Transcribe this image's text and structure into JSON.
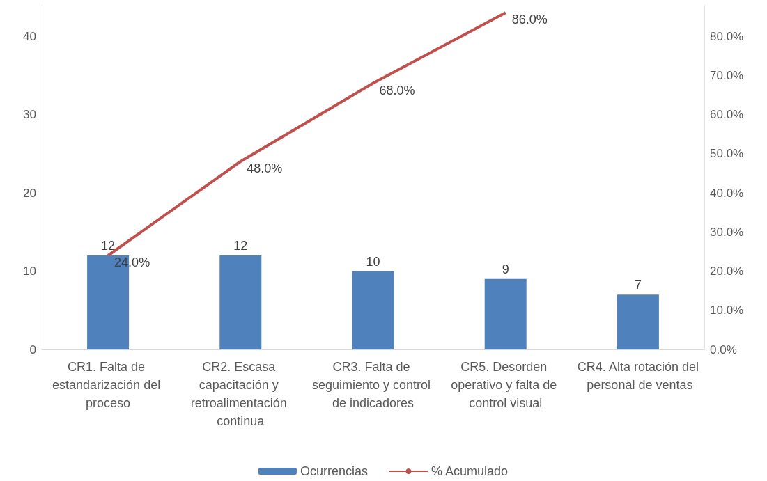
{
  "chart_data": {
    "type": "bar",
    "categories": [
      "CR1. Falta de estandarización del proceso",
      "CR2. Escasa capacitación y retroalimentación continua",
      "CR3. Falta de seguimiento y control de indicadores",
      "CR5. Desorden operativo y falta de control visual",
      "CR4. Alta rotación del personal de ventas"
    ],
    "series": [
      {
        "name": "Ocurrencias",
        "color": "#4f81bd",
        "values": [
          12,
          12,
          10,
          9,
          7
        ],
        "value_labels": [
          "12",
          "12",
          "10",
          "9",
          "7"
        ]
      },
      {
        "name": "% Acumulado",
        "type": "line",
        "axis": "y2",
        "color": "#c0504d",
        "values": [
          24,
          48,
          68,
          86,
          null
        ],
        "value_labels": [
          "24.0%",
          "48.0%",
          "68.0%",
          "86.0%",
          null
        ]
      }
    ],
    "ylim": [
      0,
      44
    ],
    "yticks": [
      0,
      10,
      20,
      30,
      40
    ],
    "y2lim": [
      0,
      88
    ],
    "y2ticks": [
      {
        "value": 0,
        "label": "0.0%"
      },
      {
        "value": 10,
        "label": "10.0%"
      },
      {
        "value": 20,
        "label": "20.0%"
      },
      {
        "value": 30,
        "label": "30.0%"
      },
      {
        "value": 40,
        "label": "40.0%"
      },
      {
        "value": 50,
        "label": "50.0%"
      },
      {
        "value": 60,
        "label": "60.0%"
      },
      {
        "value": 70,
        "label": "70.0%"
      },
      {
        "value": 80,
        "label": "80.0%"
      }
    ],
    "legend": "bottom",
    "grid": false,
    "marker": "none"
  }
}
